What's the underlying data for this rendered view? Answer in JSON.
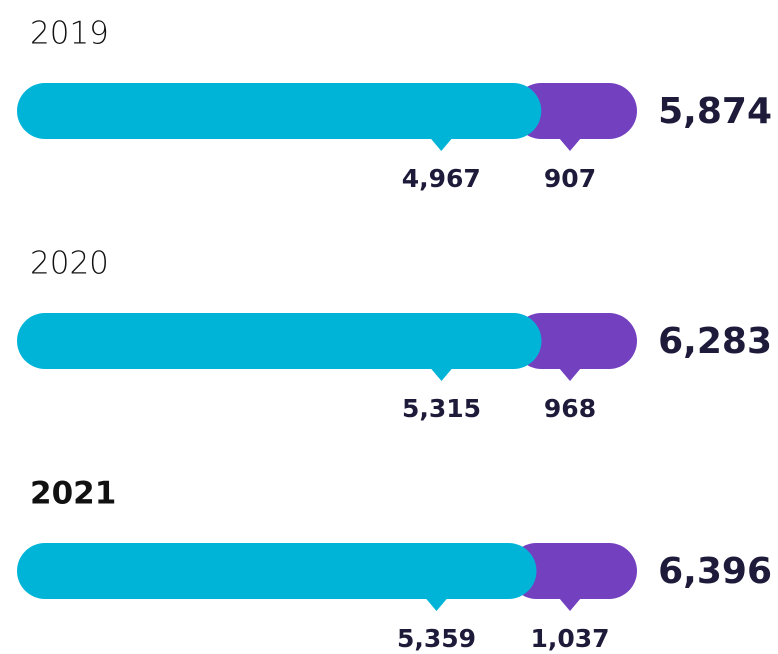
{
  "chart_data": {
    "type": "stacked-bar",
    "categories": [
      "2019",
      "2020",
      "2021"
    ],
    "highlight": 2,
    "series": [
      {
        "color": "#00b4d8",
        "values": [
          4967,
          5315,
          5359
        ],
        "value_labels": [
          "4,967",
          "5,315",
          "5,359"
        ]
      },
      {
        "color": "#7340c0",
        "values": [
          907,
          968,
          1037
        ],
        "value_labels": [
          "907",
          "968",
          "1,037"
        ]
      }
    ],
    "totals": [
      5874,
      6283,
      6396
    ],
    "total_labels": [
      "5,874",
      "6,283",
      "6,396"
    ]
  }
}
